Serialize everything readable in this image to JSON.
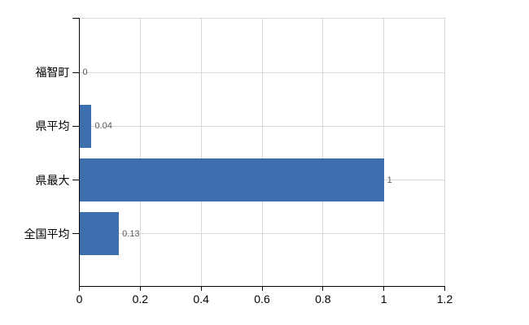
{
  "chart_data": {
    "type": "bar",
    "orientation": "horizontal",
    "title": "",
    "xlabel": "",
    "ylabel": "",
    "categories": [
      "福智町",
      "県平均",
      "県最大",
      "全国平均"
    ],
    "values": [
      0,
      0.04,
      1,
      0.13
    ],
    "value_labels": [
      "0",
      "0.04",
      "1",
      "0.13"
    ],
    "x_tick_labels": [
      "0",
      "0.2",
      "0.4",
      "0.6",
      "0.8",
      "1",
      "1.2"
    ],
    "x_tick_values": [
      0,
      0.2,
      0.4,
      0.6,
      0.8,
      1,
      1.2
    ],
    "xlim": [
      0,
      1.2
    ],
    "grid": true,
    "legend": false,
    "colors": {
      "bar": "#3d6ead",
      "grid": "#d9d9d9",
      "axis": "#000000",
      "value_label": "#595959",
      "tick_label": "#000000",
      "background": "#ffffff"
    }
  }
}
